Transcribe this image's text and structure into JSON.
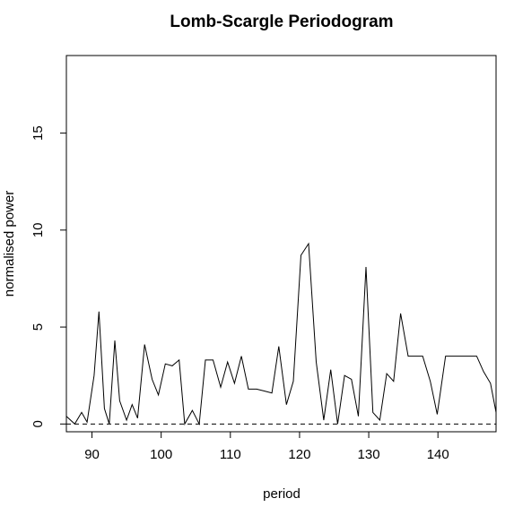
{
  "chart_data": {
    "type": "line",
    "title": "Lomb-Scargle Periodogram",
    "xlabel": "period",
    "ylabel": "normalised power",
    "xlim": [
      86.3,
      148.4
    ],
    "ylim": [
      -0.4,
      19.0
    ],
    "xticks": [
      90,
      100,
      110,
      120,
      130,
      140
    ],
    "yticks": [
      0,
      5,
      10,
      15
    ],
    "reference_line": {
      "y": 0,
      "style": "dashed"
    },
    "series": [
      {
        "x": [
          86.3,
          87.5,
          88.5,
          89.3,
          90.3,
          91.0,
          91.8,
          92.5,
          93.3,
          94.0,
          95.0,
          95.8,
          96.6,
          97.6,
          98.7,
          99.6,
          100.6,
          101.6,
          102.6,
          103.4,
          104.5,
          105.5,
          106.4,
          107.5,
          108.6,
          109.6,
          110.6,
          111.6,
          112.6,
          113.8,
          114.9,
          116.0,
          117.0,
          118.1,
          119.1,
          120.2,
          121.3,
          122.4,
          123.5,
          124.5,
          125.5,
          126.5,
          127.5,
          128.5,
          129.6,
          130.6,
          131.6,
          132.6,
          133.6,
          134.6,
          135.7,
          136.7,
          137.8,
          138.9,
          139.9,
          141.1,
          142.2,
          143.4,
          144.6,
          145.6,
          146.6,
          147.6,
          148.4
        ],
        "y": [
          0.4,
          0.0,
          0.6,
          0.1,
          2.5,
          5.8,
          0.8,
          0.0,
          4.3,
          1.2,
          0.2,
          1.0,
          0.3,
          4.1,
          2.3,
          1.5,
          3.1,
          3.0,
          3.3,
          0.0,
          0.7,
          0.0,
          3.3,
          3.3,
          1.9,
          3.2,
          2.1,
          3.5,
          1.8,
          1.8,
          1.7,
          1.6,
          4.0,
          1.0,
          2.2,
          8.7,
          9.3,
          3.2,
          0.2,
          2.8,
          0.0,
          2.5,
          2.3,
          0.4,
          8.1,
          0.6,
          0.2,
          2.6,
          2.2,
          5.7,
          3.5,
          3.5,
          3.5,
          2.2,
          0.5,
          3.5,
          3.5,
          3.5,
          3.5,
          3.5,
          2.7,
          2.1,
          0.6
        ]
      }
    ]
  }
}
